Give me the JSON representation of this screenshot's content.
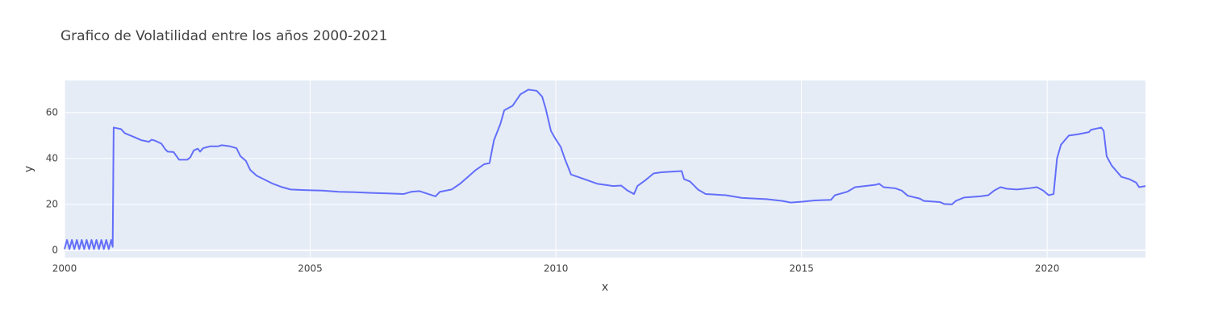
{
  "chart_data": {
    "type": "line",
    "title": "Grafico de Volatilidad entre los años 2000-2021",
    "x_label": "x",
    "y_label": "y",
    "x": [
      2000.0,
      2000.05,
      2000.1,
      2000.15,
      2000.2,
      2000.25,
      2000.3,
      2000.35,
      2000.4,
      2000.45,
      2000.5,
      2000.55,
      2000.6,
      2000.65,
      2000.7,
      2000.75,
      2000.8,
      2000.85,
      2000.9,
      2000.95,
      2000.98,
      2001.0,
      2001.15,
      2001.23,
      2001.4,
      2001.56,
      2001.72,
      2001.77,
      2001.84,
      2001.97,
      2002.05,
      2002.1,
      2002.22,
      2002.33,
      2002.5,
      2002.56,
      2002.63,
      2002.71,
      2002.76,
      2002.82,
      2002.96,
      2003.12,
      2003.2,
      2003.37,
      2003.5,
      2003.58,
      2003.69,
      2003.78,
      2003.91,
      2004.1,
      2004.24,
      2004.43,
      2004.6,
      2004.93,
      2005.25,
      2005.58,
      2005.91,
      2006.24,
      2006.57,
      2006.9,
      2007.06,
      2007.22,
      2007.55,
      2007.64,
      2007.88,
      2008.05,
      2008.21,
      2008.37,
      2008.54,
      2008.65,
      2008.74,
      2008.87,
      2008.95,
      2009.12,
      2009.28,
      2009.44,
      2009.61,
      2009.72,
      2009.79,
      2009.9,
      2009.98,
      2010.1,
      2010.18,
      2010.31,
      2010.51,
      2010.84,
      2011.17,
      2011.33,
      2011.46,
      2011.59,
      2011.66,
      2011.82,
      2011.99,
      2012.15,
      2012.56,
      2012.61,
      2012.73,
      2012.89,
      2013.05,
      2013.46,
      2013.79,
      2014.29,
      2014.61,
      2014.78,
      2015.02,
      2015.27,
      2015.6,
      2015.68,
      2015.93,
      2016.09,
      2016.5,
      2016.58,
      2016.67,
      2016.91,
      2017.04,
      2017.16,
      2017.41,
      2017.49,
      2017.82,
      2017.9,
      2018.06,
      2018.14,
      2018.31,
      2018.64,
      2018.8,
      2018.92,
      2019.05,
      2019.18,
      2019.38,
      2019.62,
      2019.79,
      2019.92,
      2020.03,
      2020.13,
      2020.2,
      2020.28,
      2020.44,
      2020.61,
      2020.85,
      2020.89,
      2021.1,
      2021.15,
      2021.21,
      2021.31,
      2021.43,
      2021.51,
      2021.67,
      2021.81,
      2021.87,
      2022.0
    ],
    "series": [
      {
        "name": "y",
        "color": "#636efa",
        "values": [
          0.5,
          4.5,
          0.5,
          4.5,
          0.5,
          4.5,
          0.5,
          4.5,
          0.5,
          4.5,
          0.5,
          4.5,
          0.5,
          4.5,
          0.5,
          4.5,
          0.5,
          4.5,
          0.5,
          4.5,
          1.5,
          53.5,
          52.8,
          51,
          49.5,
          48,
          47.3,
          48.2,
          47.8,
          46.5,
          44,
          43,
          42.8,
          39.5,
          39.5,
          40.5,
          43.5,
          44.3,
          43,
          44.5,
          45.3,
          45.3,
          45.8,
          45.3,
          44.5,
          41,
          39,
          35,
          32.5,
          30.5,
          29,
          27.5,
          26.5,
          26.2,
          26,
          25.5,
          25.3,
          25,
          24.8,
          24.5,
          25.5,
          25.8,
          23.5,
          25.5,
          26.5,
          29,
          32,
          35,
          37.5,
          38,
          48,
          55,
          61,
          63,
          68,
          70,
          69.5,
          67,
          62,
          52,
          49,
          45,
          40,
          33,
          31.5,
          29,
          28,
          28.2,
          26,
          24.5,
          28,
          30.5,
          33.5,
          34,
          34.5,
          31,
          30,
          26.5,
          24.5,
          24,
          22.8,
          22.3,
          21.5,
          20.8,
          21.2,
          21.7,
          22,
          24,
          25.5,
          27.5,
          28.5,
          29,
          27.5,
          27,
          26,
          23.8,
          22.5,
          21.5,
          21,
          20.2,
          20,
          21.5,
          23,
          23.5,
          24,
          26,
          27.5,
          26.8,
          26.5,
          27,
          27.5,
          26,
          24,
          24.5,
          40,
          46,
          50,
          50.5,
          51.5,
          52.5,
          53.5,
          52,
          41,
          37,
          34,
          32,
          31,
          29.5,
          27.5,
          28
        ]
      }
    ],
    "xlim": [
      2000,
      2022
    ],
    "xticks": [
      2000,
      2005,
      2010,
      2015,
      2020
    ],
    "ylim": [
      -3.2,
      74
    ],
    "yticks": [
      0,
      20,
      40,
      60
    ],
    "grid": true
  }
}
